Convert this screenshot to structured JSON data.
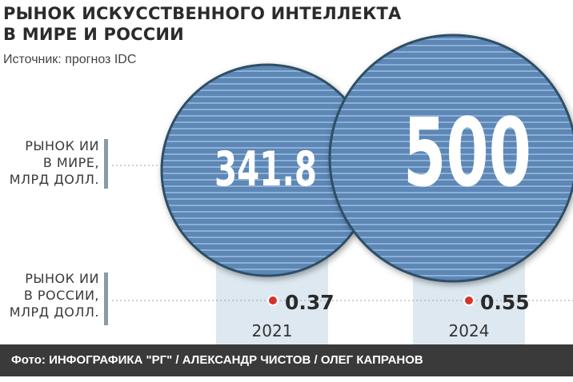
{
  "chart_data": {
    "type": "bubble",
    "title": "РЫНОК ИСКУССТВЕННОГО ИНТЕЛЛЕКТА В МИРЕ И РОССИИ",
    "title_lines": [
      "РЫНОК ИСКУССТВЕННОГО ИНТЕЛЛЕКТА",
      "В МИРЕ И РОССИИ"
    ],
    "source": "Источник: прогноз IDC",
    "categories": [
      "2021",
      "2024"
    ],
    "series": [
      {
        "name": "РЫНОК ИИ В МИРЕ, МЛРД ДОЛЛ.",
        "label_lines": [
          "РЫНОК ИИ",
          "В МИРЕ,",
          "МЛРД ДОЛЛ."
        ],
        "values": [
          341.8,
          500
        ],
        "value_labels": [
          "341.8",
          "500"
        ]
      },
      {
        "name": "РЫНОК ИИ В РОССИИ, МЛРД ДОЛЛ.",
        "label_lines": [
          "РЫНОК ИИ",
          "В РОССИИ,",
          "МЛРД ДОЛЛ."
        ],
        "values": [
          0.37,
          0.55
        ],
        "value_labels": [
          "0.37",
          "0.55"
        ]
      }
    ]
  },
  "caption": "Фото: ИНФОГРАФИКА \"РГ\" / АЛЕКСАНДР ЧИСТОВ / ОЛЕГ КАПРАНОВ",
  "colors": {
    "bubble_fill": "#5b87b6",
    "bubble_stripe": "#8fb0d3",
    "bubble_stroke": "#2f4f66",
    "column_bg": "#dde8f0",
    "dot": "#d9312b",
    "text_dark": "#2b2b2b",
    "caption_bg": "#3a3a3a"
  }
}
